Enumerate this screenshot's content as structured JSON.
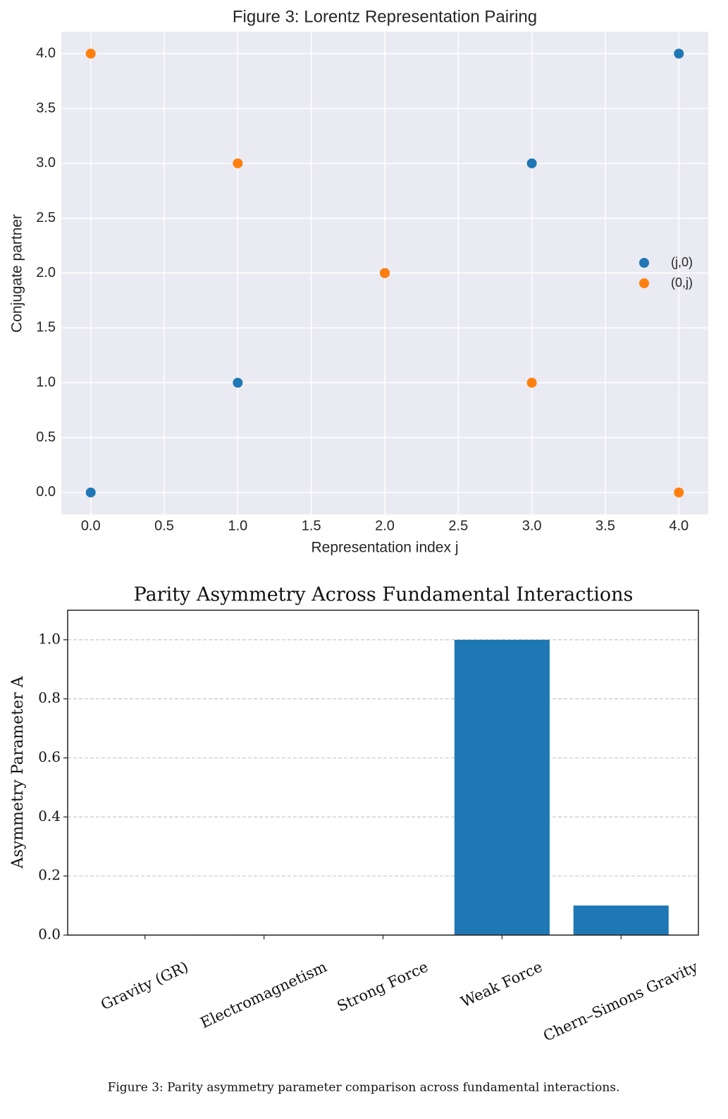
{
  "chart_data": [
    {
      "type": "scatter",
      "title": "Figure 3: Lorentz Representation Pairing",
      "x_label": "Representation index j",
      "y_label": "Conjugate partner",
      "x": [
        0,
        1,
        2,
        3,
        4
      ],
      "series": [
        {
          "name": "(j,0)",
          "color": "#1f77b4",
          "values": [
            0,
            1,
            2,
            3,
            4
          ]
        },
        {
          "name": "(0,j)",
          "color": "#ff7f0e",
          "values": [
            4,
            3,
            2,
            1,
            0
          ]
        }
      ],
      "xlim": [
        -0.2,
        4.2
      ],
      "ylim": [
        -0.2,
        4.2
      ],
      "xticks": [
        {
          "value": 0,
          "label": "0.0"
        },
        0.5,
        {
          "value": 1,
          "label": "1.0"
        },
        1.5,
        {
          "value": 2,
          "label": "2.0"
        },
        2.5,
        {
          "value": 3,
          "label": "3.0"
        },
        3.5,
        {
          "value": 4,
          "label": "4.0"
        }
      ],
      "yticks": [
        {
          "value": 0,
          "label": "0.0"
        },
        0.5,
        {
          "value": 1,
          "label": "1.0"
        },
        1.5,
        {
          "value": 2,
          "label": "2.0"
        },
        2.5,
        {
          "value": 3,
          "label": "3.0"
        },
        3.5,
        {
          "value": 4,
          "label": "4.0"
        }
      ],
      "grid": true,
      "legend": "center right"
    },
    {
      "type": "bar",
      "title": "Parity Asymmetry Across Fundamental Interactions",
      "y_label": "Asymmetry Parameter A",
      "categories": [
        "Gravity (GR)",
        "Electromagnetism",
        "Strong Force",
        "Weak Force",
        "Chern–Simons Gravity"
      ],
      "values": [
        0,
        0,
        0,
        1,
        0.1
      ],
      "color": "#1f77b4",
      "ylim": [
        0,
        1.1
      ],
      "yticks": [
        {
          "value": 0,
          "label": "0.0"
        },
        {
          "value": 0.2,
          "label": "0.2"
        },
        {
          "value": 0.4,
          "label": "0.4"
        },
        {
          "value": 0.6,
          "label": "0.6"
        },
        {
          "value": 0.8,
          "label": "0.8"
        },
        {
          "value": 1,
          "label": "1.0"
        }
      ],
      "grid": true
    }
  ],
  "caption": "Figure 3: Parity asymmetry parameter comparison across fundamental interactions."
}
